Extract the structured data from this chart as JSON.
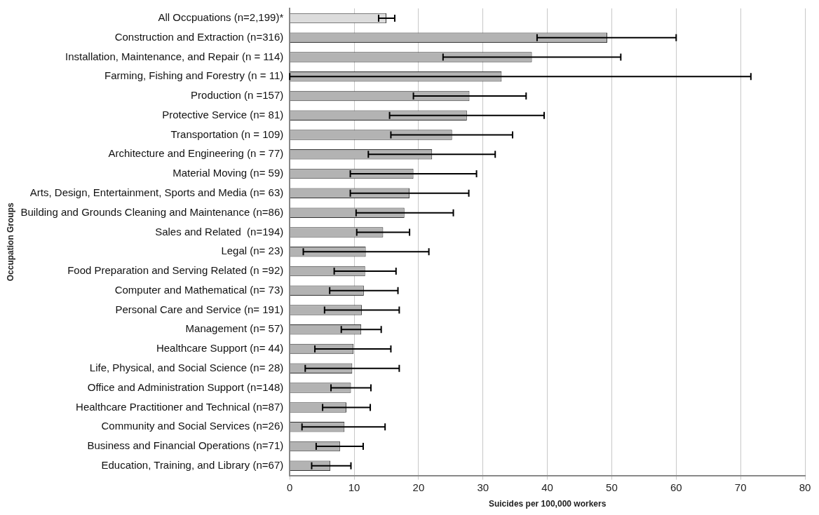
{
  "chart_data": {
    "type": "bar",
    "orientation": "horizontal",
    "xlabel": "Suicides per 100,000 workers",
    "ylabel": "Occupation Groups",
    "categories": [
      "All Occpuations (n=2,199)*",
      "Construction and Extraction (n=316)",
      "Installation, Maintenance, and Repair (n = 114)",
      "Farming, Fishing and Forestry (n = 11)",
      "Production (n =157)",
      "Protective Service (n= 81)",
      "Transportation (n = 109)",
      "Architecture and Engineering (n = 77)",
      "Material Moving (n= 59)",
      "Arts, Design, Entertainment, Sports and Media (n= 63)",
      "Building and Grounds Cleaning and Maintenance (n=86)",
      "Sales and Related  (n=194)",
      "Legal (n= 23)",
      "Food Preparation and Serving Related (n =92)",
      "Computer and Mathematical (n= 73)",
      "Personal Care and Service (n= 191)",
      "Management (n= 57)",
      "Healthcare Support (n= 44)",
      "Life, Physical, and Social Science (n= 28)",
      "Office and Administration Support (n=148)",
      "Healthcare Practitioner and Technical (n=87)",
      "Community and Social Services (n=26)",
      "Business and Financial Operations (n=71)",
      "Education, Training, and Library (n=67)"
    ],
    "values": [
      15.0,
      49.3,
      37.6,
      32.9,
      27.9,
      27.5,
      25.2,
      22.1,
      19.2,
      18.6,
      17.8,
      14.5,
      11.8,
      11.7,
      11.5,
      11.2,
      11.1,
      9.9,
      9.7,
      9.5,
      8.8,
      8.5,
      7.8,
      6.3
    ],
    "errors": [
      [
        13.8,
        16.3
      ],
      [
        38.4,
        60.0
      ],
      [
        23.8,
        51.4
      ],
      [
        0.0,
        71.6
      ],
      [
        19.2,
        36.7
      ],
      [
        15.5,
        39.5
      ],
      [
        15.7,
        34.6
      ],
      [
        12.2,
        31.9
      ],
      [
        9.4,
        29.0
      ],
      [
        9.4,
        27.8
      ],
      [
        10.3,
        25.4
      ],
      [
        10.4,
        18.6
      ],
      [
        2.1,
        21.6
      ],
      [
        6.9,
        16.5
      ],
      [
        6.2,
        16.8
      ],
      [
        5.4,
        17.0
      ],
      [
        8.0,
        14.2
      ],
      [
        3.9,
        15.7
      ],
      [
        2.4,
        17.0
      ],
      [
        6.4,
        12.6
      ],
      [
        5.1,
        12.5
      ],
      [
        1.9,
        14.8
      ],
      [
        4.1,
        11.4
      ],
      [
        3.4,
        9.5
      ]
    ],
    "colors": [
      "#dcdcdc",
      "#b3b3b3",
      "#b3b3b3",
      "#b3b3b3",
      "#b3b3b3",
      "#b3b3b3",
      "#b3b3b3",
      "#b3b3b3",
      "#b3b3b3",
      "#b3b3b3",
      "#b3b3b3",
      "#b3b3b3",
      "#b3b3b3",
      "#b3b3b3",
      "#b3b3b3",
      "#b3b3b3",
      "#b3b3b3",
      "#b3b3b3",
      "#b3b3b3",
      "#b3b3b3",
      "#b3b3b3",
      "#b3b3b3",
      "#b3b3b3",
      "#b3b3b3"
    ],
    "xlim": [
      0,
      80
    ],
    "xticks": [
      0,
      10,
      20,
      30,
      40,
      50,
      60,
      70,
      80
    ],
    "grid": "x",
    "legend": false
  }
}
